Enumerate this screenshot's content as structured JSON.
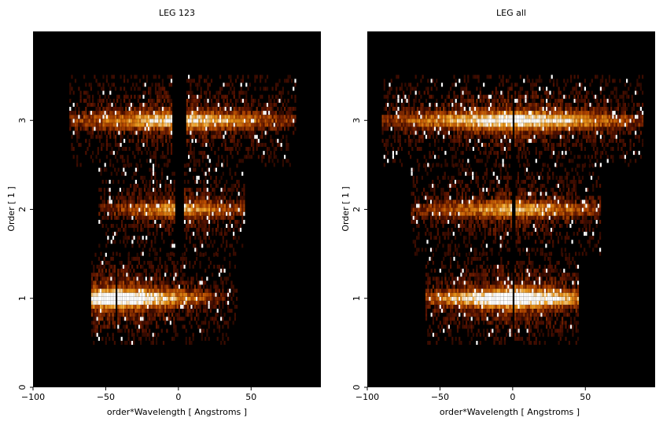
{
  "chart_data": [
    {
      "type": "heatmap",
      "title": "LEG 123",
      "xlabel": "order*Wavelength [ Angstroms ]",
      "ylabel": "Order [ 1 ]",
      "xlim": [
        -100,
        98
      ],
      "ylim": [
        0,
        4
      ],
      "xticks": [
        "−100",
        "−50",
        "0",
        "50"
      ],
      "yticks": [
        "0",
        "1",
        "2",
        "3"
      ],
      "colormap": [
        "#000000",
        "#5a1200",
        "#b84a00",
        "#f0a020",
        "#ffffff"
      ],
      "bands": [
        {
          "order": 1,
          "xmin": -60,
          "xmax": 40,
          "gap": [
            -44,
            -42
          ],
          "intensity": 1.0
        },
        {
          "order": 2,
          "xmin": -55,
          "xmax": 45,
          "gap": [
            -3,
            3
          ],
          "intensity": 0.55
        },
        {
          "order": 3,
          "xmin": -75,
          "xmax": 80,
          "gap": [
            -5,
            5
          ],
          "intensity": 0.7
        }
      ]
    },
    {
      "type": "heatmap",
      "title": "LEG all",
      "xlabel": "order*Wavelength [ Angstroms ]",
      "ylabel": "Order [ 1 ]",
      "xlim": [
        -100,
        98
      ],
      "ylim": [
        0,
        4
      ],
      "xticks": [
        "−100",
        "−50",
        "0",
        "50"
      ],
      "yticks": [
        "0",
        "1",
        "2",
        "3"
      ],
      "colormap": [
        "#000000",
        "#5a1200",
        "#b84a00",
        "#f0a020",
        "#ffffff"
      ],
      "bands": [
        {
          "order": 1,
          "xmin": -60,
          "xmax": 45,
          "gap": [
            -1,
            1
          ],
          "intensity": 1.0
        },
        {
          "order": 2,
          "xmin": -70,
          "xmax": 60,
          "gap": [
            -1,
            1
          ],
          "intensity": 0.6
        },
        {
          "order": 3,
          "xmin": -90,
          "xmax": 90,
          "gap": [
            -1,
            1
          ],
          "intensity": 0.8
        }
      ]
    }
  ]
}
